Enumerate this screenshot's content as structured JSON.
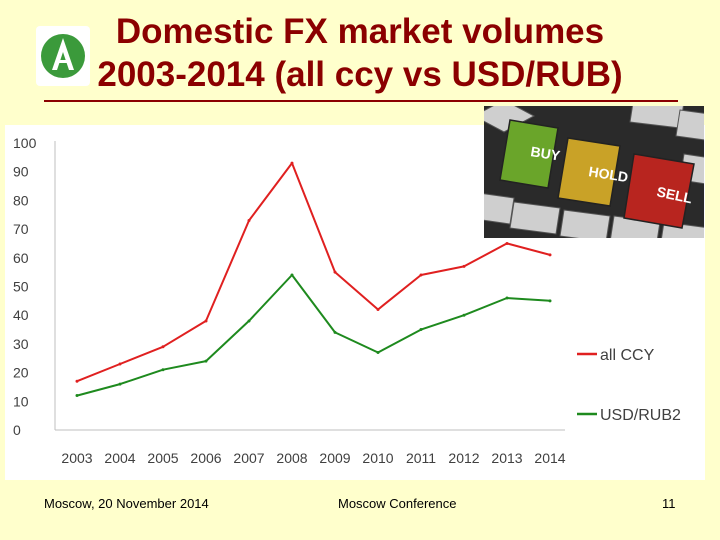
{
  "title_line1": "Domestic FX market volumes",
  "title_line2": "2003-2014 (all ccy vs USD/RUB)",
  "footer": {
    "left": "Moscow, 20 November 2014",
    "center": "Moscow Conference",
    "page_number": "11"
  },
  "photo": {
    "keys": [
      "BUY",
      "HOLD",
      "SELL"
    ],
    "key_colors": [
      "#6aa52a",
      "#c9a227",
      "#b8251f"
    ]
  },
  "colors": {
    "background": "#ffffcc",
    "title": "#8b0000",
    "series_all": "#e02020",
    "series_usd": "#1e8a1e"
  },
  "chart_data": {
    "type": "line",
    "title": "",
    "xlabel": "",
    "ylabel": "",
    "x": [
      "2003",
      "2004",
      "2005",
      "2006",
      "2007",
      "2008",
      "2009",
      "2010",
      "2011",
      "2012",
      "2013",
      "2014"
    ],
    "ylim": [
      0,
      100
    ],
    "yticks": [
      0,
      10,
      20,
      30,
      40,
      50,
      60,
      70,
      80,
      90,
      100
    ],
    "grid": false,
    "legend": "right",
    "series": [
      {
        "name": "all CCY",
        "color": "#e02020",
        "values": [
          17,
          23,
          29,
          38,
          73,
          93,
          55,
          42,
          54,
          57,
          65,
          61
        ]
      },
      {
        "name": "USD/RUB2",
        "color": "#1e8a1e",
        "values": [
          12,
          16,
          21,
          24,
          38,
          54,
          34,
          27,
          35,
          40,
          46,
          45
        ]
      }
    ]
  }
}
